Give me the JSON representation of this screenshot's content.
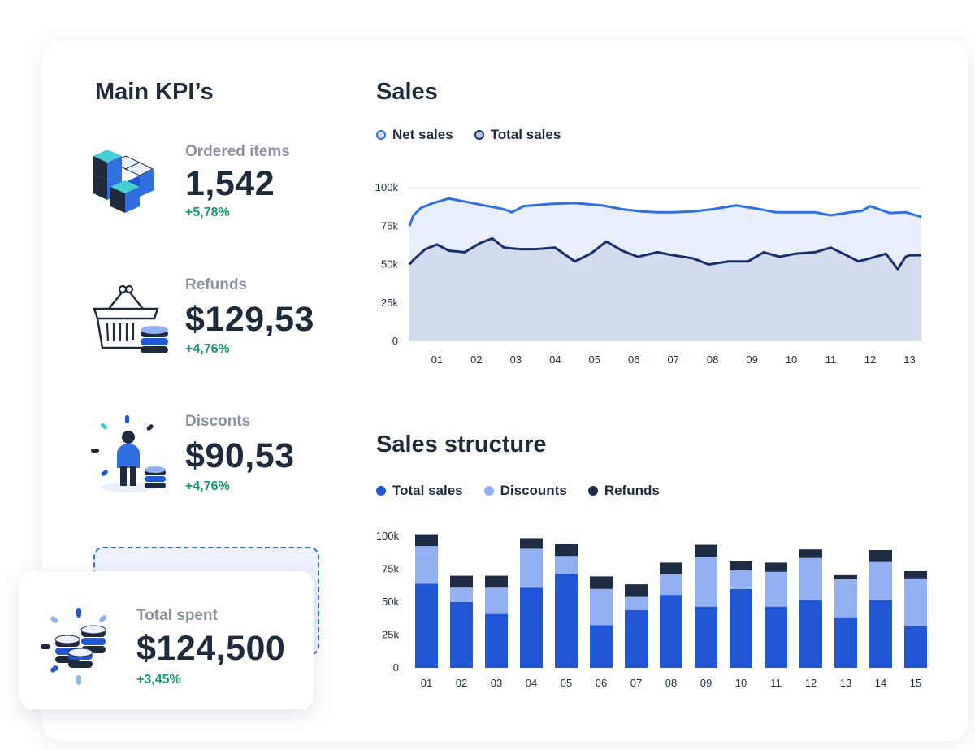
{
  "kpi_section": {
    "title": "Main KPI’s",
    "items": [
      {
        "label": "Ordered items",
        "value": "1,542",
        "change": "+5,78%",
        "icon": "cubes-icon"
      },
      {
        "label": "Refunds",
        "value": "$129,53",
        "change": "+4,76%",
        "icon": "basket-icon"
      },
      {
        "label": "Disconts",
        "value": "$90,53",
        "change": "+4,76%",
        "icon": "person-coins-icon"
      }
    ],
    "total": {
      "label": "Total spent",
      "value": "$124,500",
      "change": "+3,45%",
      "icon": "coins-stack-icon"
    }
  },
  "colors": {
    "net_sales": "#2f6fe0",
    "total_sales_line": "#17306b",
    "bar_total": "#2157d4",
    "bar_discounts": "#93b1f2",
    "bar_refunds": "#1f2d44",
    "positive": "#159a6c"
  },
  "chart_data": [
    {
      "type": "area",
      "title": "Sales",
      "xlabel": "",
      "ylabel": "",
      "ylim": [
        0,
        100000
      ],
      "yticks": [
        "0",
        "25k",
        "50k",
        "75k",
        "100k"
      ],
      "ytick_values": [
        0,
        25000,
        50000,
        75000,
        100000
      ],
      "xticks": [
        "01",
        "02",
        "03",
        "04",
        "05",
        "06",
        "07",
        "08",
        "09",
        "10",
        "11",
        "12",
        "13"
      ],
      "xlim": [
        0.3,
        13.3
      ],
      "grid": true,
      "legend": "top-left",
      "series": [
        {
          "name": "Net sales",
          "x": [
            0.3,
            0.4,
            0.6,
            0.9,
            1.3,
            1.7,
            2.1,
            2.7,
            2.9,
            3.2,
            3.9,
            4.5,
            5.2,
            5.7,
            6.2,
            6.6,
            7.0,
            7.5,
            8.0,
            8.6,
            9.2,
            9.6,
            10.1,
            10.6,
            11.0,
            11.5,
            11.8,
            12.0,
            12.5,
            12.9,
            13.3
          ],
          "values": [
            75000,
            82000,
            87000,
            90000,
            93000,
            91000,
            89000,
            86000,
            84000,
            88000,
            89500,
            90000,
            88500,
            86000,
            84500,
            84000,
            84000,
            84500,
            86000,
            88500,
            86000,
            84000,
            84000,
            84000,
            82000,
            84000,
            85000,
            88000,
            83500,
            84000,
            81000
          ]
        },
        {
          "name": "Total sales",
          "x": [
            0.3,
            0.4,
            0.7,
            1.0,
            1.3,
            1.7,
            2.1,
            2.4,
            2.7,
            3.1,
            3.5,
            4.0,
            4.5,
            4.9,
            5.3,
            5.7,
            6.1,
            6.6,
            7.0,
            7.5,
            7.9,
            8.4,
            8.9,
            9.3,
            9.7,
            10.1,
            10.6,
            11.0,
            11.4,
            11.7,
            12.0,
            12.4,
            12.7,
            12.9,
            13.0,
            13.3
          ],
          "values": [
            50000,
            53000,
            60000,
            63000,
            59000,
            58000,
            64000,
            67000,
            61000,
            60000,
            60000,
            61000,
            52000,
            57000,
            65000,
            59000,
            55000,
            58000,
            56000,
            54000,
            50000,
            52000,
            52000,
            58000,
            55000,
            57000,
            58000,
            61000,
            56000,
            52000,
            54000,
            57000,
            47000,
            55000,
            56000,
            56000
          ]
        }
      ]
    },
    {
      "type": "bar",
      "stacked": true,
      "title": "Sales structure",
      "xlabel": "",
      "ylabel": "",
      "ylim": [
        0,
        100000
      ],
      "yticks": [
        "0",
        "25k",
        "50k",
        "75k",
        "100k"
      ],
      "ytick_values": [
        0,
        25000,
        50000,
        75000,
        100000
      ],
      "categories": [
        "01",
        "02",
        "03",
        "04",
        "05",
        "06",
        "07",
        "08",
        "09",
        "10",
        "11",
        "12",
        "13",
        "14",
        "15"
      ],
      "grid": false,
      "legend": "top-left",
      "series": [
        {
          "name": "Total sales",
          "values": [
            64000,
            50000,
            41000,
            61000,
            71500,
            32500,
            44000,
            55500,
            46500,
            60000,
            46500,
            51500,
            38500,
            51500,
            31500
          ]
        },
        {
          "name": "Discounts",
          "values": [
            28500,
            11000,
            20000,
            29500,
            13500,
            27500,
            10000,
            15500,
            38000,
            14000,
            26500,
            32000,
            29000,
            29000,
            36500
          ]
        },
        {
          "name": "Refunds",
          "values": [
            9000,
            9000,
            9000,
            8000,
            9000,
            9500,
            9500,
            9000,
            9000,
            7000,
            7000,
            6500,
            3000,
            9000,
            5500
          ]
        }
      ]
    }
  ]
}
